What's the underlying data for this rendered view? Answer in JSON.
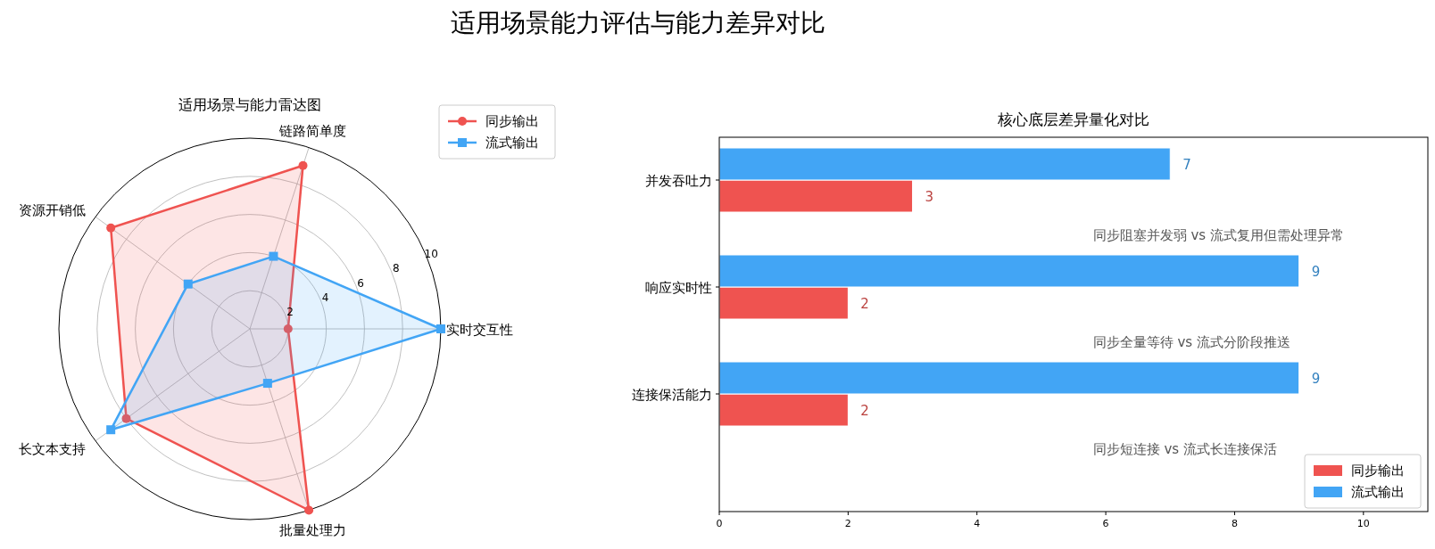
{
  "chart_data": [
    {
      "type": "radar",
      "title": "适用场景能力评估与能力差异对比",
      "subtitle": "适用场景与能力雷达图",
      "categories": [
        "链路简单度",
        "实时交互性",
        "批量处理力",
        "长文本支持",
        "资源开销低"
      ],
      "series": [
        {
          "name": "同步输出",
          "color": "#ef5350",
          "values": [
            9,
            2,
            10,
            8,
            9
          ],
          "marker": "circle"
        },
        {
          "name": "流式输出",
          "color": "#42a5f5",
          "values": [
            4,
            10,
            3,
            9,
            4
          ],
          "marker": "square"
        }
      ],
      "ylim": [
        0,
        10
      ],
      "yticks": [
        2,
        4,
        6,
        8,
        10
      ],
      "grid": true,
      "legend": "top right"
    },
    {
      "type": "bar",
      "orientation": "horizontal",
      "title": "核心底层差异量化对比",
      "categories": [
        "并发吞吐力",
        "响应实时性",
        "连接保活能力"
      ],
      "series": [
        {
          "name": "同步输出",
          "color": "#ef5350",
          "values": [
            3,
            2,
            2
          ]
        },
        {
          "name": "流式输出",
          "color": "#42a5f5",
          "values": [
            7,
            9,
            9
          ]
        }
      ],
      "xlim": [
        0,
        11
      ],
      "xticks": [
        0,
        2,
        4,
        6,
        8,
        10
      ],
      "data_labels": true,
      "legend": "bottom right",
      "annotations": [
        "同步阻塞并发弱 vs 流式复用但需处理异常",
        "同步全量等待 vs 流式分阶段推送",
        "同步短连接 vs 流式长连接保活"
      ]
    }
  ]
}
